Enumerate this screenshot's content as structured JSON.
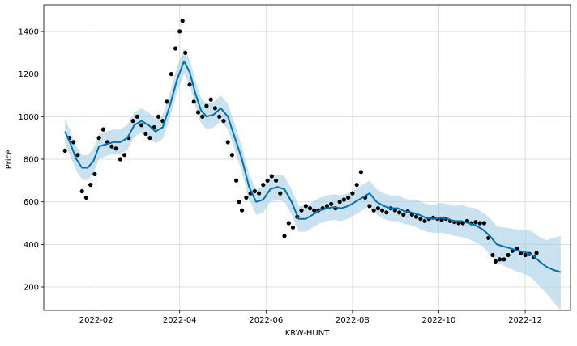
{
  "chart_data": {
    "type": "line",
    "xlabel": "KRW-HUNT",
    "ylabel": "Price",
    "x_ticks": [
      "2022-02",
      "2022-04",
      "2022-06",
      "2022-08",
      "2022-10",
      "2022-12"
    ],
    "y_ticks": [
      200,
      400,
      600,
      800,
      1000,
      1200,
      1400
    ],
    "xlim": [
      "2021-12-26",
      "2023-01-02"
    ],
    "ylim": [
      90,
      1525
    ],
    "grid": true,
    "legend": "none",
    "colors": {
      "observed": "#000000",
      "forecast": "#0072B2",
      "interval": "#9ecae1"
    },
    "series": [
      {
        "kind": "forecast",
        "x": [
          "2022-01-10",
          "2022-01-14",
          "2022-01-18",
          "2022-01-22",
          "2022-01-26",
          "2022-01-30",
          "2022-02-03",
          "2022-02-08",
          "2022-02-13",
          "2022-02-18",
          "2022-02-23",
          "2022-02-28",
          "2022-03-05",
          "2022-03-10",
          "2022-03-15",
          "2022-03-20",
          "2022-03-25",
          "2022-03-30",
          "2022-04-04",
          "2022-04-08",
          "2022-04-12",
          "2022-04-16",
          "2022-04-20",
          "2022-04-25",
          "2022-04-30",
          "2022-05-05",
          "2022-05-10",
          "2022-05-15",
          "2022-05-20",
          "2022-05-25",
          "2022-05-30",
          "2022-06-04",
          "2022-06-09",
          "2022-06-14",
          "2022-06-19",
          "2022-06-24",
          "2022-06-29",
          "2022-07-04",
          "2022-07-09",
          "2022-07-14",
          "2022-07-19",
          "2022-07-24",
          "2022-07-29",
          "2022-08-03",
          "2022-08-08",
          "2022-08-13",
          "2022-08-18",
          "2022-08-23",
          "2022-08-28",
          "2022-09-02",
          "2022-09-07",
          "2022-09-12",
          "2022-09-17",
          "2022-09-22",
          "2022-09-27",
          "2022-10-02",
          "2022-10-07",
          "2022-10-12",
          "2022-10-17",
          "2022-10-22",
          "2022-10-27",
          "2022-11-01",
          "2022-11-06",
          "2022-11-11",
          "2022-11-16",
          "2022-11-21",
          "2022-11-26",
          "2022-12-01",
          "2022-12-06",
          "2022-12-11",
          "2022-12-16",
          "2022-12-21",
          "2022-12-26"
        ],
        "yhat": [
          930,
          870,
          800,
          760,
          760,
          790,
          860,
          870,
          880,
          880,
          900,
          960,
          980,
          960,
          930,
          950,
          1050,
          1170,
          1260,
          1210,
          1110,
          1030,
          1000,
          1010,
          1040,
          1000,
          900,
          800,
          670,
          600,
          610,
          660,
          670,
          660,
          600,
          520,
          520,
          540,
          560,
          570,
          575,
          570,
          580,
          600,
          620,
          640,
          600,
          580,
          570,
          570,
          555,
          550,
          540,
          525,
          520,
          525,
          520,
          510,
          510,
          500,
          490,
          470,
          440,
          400,
          390,
          380,
          370,
          365,
          350,
          320,
          295,
          280,
          270
        ],
        "lower": [
          870,
          810,
          745,
          705,
          700,
          735,
          800,
          815,
          825,
          825,
          845,
          905,
          925,
          905,
          875,
          895,
          990,
          1110,
          1200,
          1150,
          1050,
          970,
          940,
          950,
          980,
          940,
          840,
          740,
          610,
          540,
          550,
          600,
          610,
          600,
          540,
          460,
          460,
          480,
          500,
          510,
          515,
          510,
          520,
          540,
          560,
          580,
          540,
          520,
          510,
          510,
          495,
          490,
          475,
          460,
          455,
          455,
          450,
          440,
          435,
          425,
          410,
          390,
          355,
          315,
          300,
          285,
          270,
          260,
          240,
          205,
          170,
          130,
          90
        ],
        "upper": [
          990,
          930,
          860,
          820,
          820,
          850,
          920,
          930,
          940,
          940,
          960,
          1020,
          1040,
          1020,
          990,
          1010,
          1110,
          1230,
          1320,
          1270,
          1170,
          1090,
          1060,
          1070,
          1100,
          1060,
          960,
          860,
          730,
          660,
          670,
          720,
          730,
          720,
          660,
          580,
          580,
          600,
          620,
          630,
          635,
          630,
          640,
          660,
          680,
          700,
          660,
          640,
          630,
          630,
          615,
          610,
          605,
          590,
          585,
          595,
          590,
          580,
          585,
          575,
          570,
          550,
          525,
          485,
          480,
          475,
          470,
          470,
          460,
          435,
          420,
          430,
          440
        ]
      },
      {
        "kind": "observed",
        "x": [
          "2022-01-10",
          "2022-01-13",
          "2022-01-16",
          "2022-01-19",
          "2022-01-22",
          "2022-01-25",
          "2022-01-28",
          "2022-01-31",
          "2022-02-03",
          "2022-02-06",
          "2022-02-09",
          "2022-02-12",
          "2022-02-15",
          "2022-02-18",
          "2022-02-21",
          "2022-02-24",
          "2022-02-27",
          "2022-03-02",
          "2022-03-05",
          "2022-03-08",
          "2022-03-11",
          "2022-03-14",
          "2022-03-17",
          "2022-03-20",
          "2022-03-23",
          "2022-03-26",
          "2022-03-29",
          "2022-04-01",
          "2022-04-03",
          "2022-04-05",
          "2022-04-08",
          "2022-04-11",
          "2022-04-14",
          "2022-04-17",
          "2022-04-20",
          "2022-04-23",
          "2022-04-26",
          "2022-04-29",
          "2022-05-02",
          "2022-05-05",
          "2022-05-08",
          "2022-05-11",
          "2022-05-13",
          "2022-05-15",
          "2022-05-18",
          "2022-05-21",
          "2022-05-24",
          "2022-05-27",
          "2022-05-30",
          "2022-06-02",
          "2022-06-05",
          "2022-06-08",
          "2022-06-11",
          "2022-06-14",
          "2022-06-17",
          "2022-06-20",
          "2022-06-23",
          "2022-06-26",
          "2022-06-29",
          "2022-07-02",
          "2022-07-05",
          "2022-07-08",
          "2022-07-11",
          "2022-07-14",
          "2022-07-17",
          "2022-07-20",
          "2022-07-23",
          "2022-07-26",
          "2022-07-29",
          "2022-08-01",
          "2022-08-04",
          "2022-08-07",
          "2022-08-10",
          "2022-08-13",
          "2022-08-16",
          "2022-08-19",
          "2022-08-22",
          "2022-08-25",
          "2022-08-28",
          "2022-08-31",
          "2022-09-03",
          "2022-09-06",
          "2022-09-09",
          "2022-09-12",
          "2022-09-15",
          "2022-09-18",
          "2022-09-21",
          "2022-09-24",
          "2022-09-27",
          "2022-09-30",
          "2022-10-03",
          "2022-10-06",
          "2022-10-09",
          "2022-10-12",
          "2022-10-15",
          "2022-10-18",
          "2022-10-21",
          "2022-10-24",
          "2022-10-27",
          "2022-10-30",
          "2022-11-02",
          "2022-11-05",
          "2022-11-08",
          "2022-11-10",
          "2022-11-13",
          "2022-11-16",
          "2022-11-19",
          "2022-11-22",
          "2022-11-25",
          "2022-11-28",
          "2022-12-01",
          "2022-12-04",
          "2022-12-07",
          "2022-12-09"
        ],
        "y": [
          840,
          900,
          880,
          820,
          650,
          620,
          680,
          730,
          900,
          940,
          880,
          860,
          850,
          800,
          820,
          900,
          980,
          1000,
          960,
          920,
          900,
          950,
          1000,
          980,
          1070,
          1200,
          1320,
          1400,
          1450,
          1300,
          1150,
          1070,
          1020,
          1000,
          1050,
          1080,
          1040,
          1000,
          980,
          880,
          820,
          700,
          600,
          560,
          620,
          640,
          650,
          640,
          680,
          700,
          720,
          700,
          640,
          440,
          500,
          480,
          530,
          560,
          580,
          570,
          560,
          560,
          570,
          580,
          590,
          570,
          600,
          610,
          620,
          640,
          680,
          740,
          620,
          580,
          560,
          570,
          560,
          550,
          570,
          560,
          550,
          540,
          555,
          540,
          530,
          520,
          510,
          520,
          525,
          520,
          515,
          520,
          510,
          505,
          500,
          500,
          510,
          500,
          505,
          500,
          500,
          430,
          350,
          320,
          330,
          330,
          350,
          370,
          380,
          360,
          350,
          355,
          340,
          360
        ]
      }
    ]
  }
}
